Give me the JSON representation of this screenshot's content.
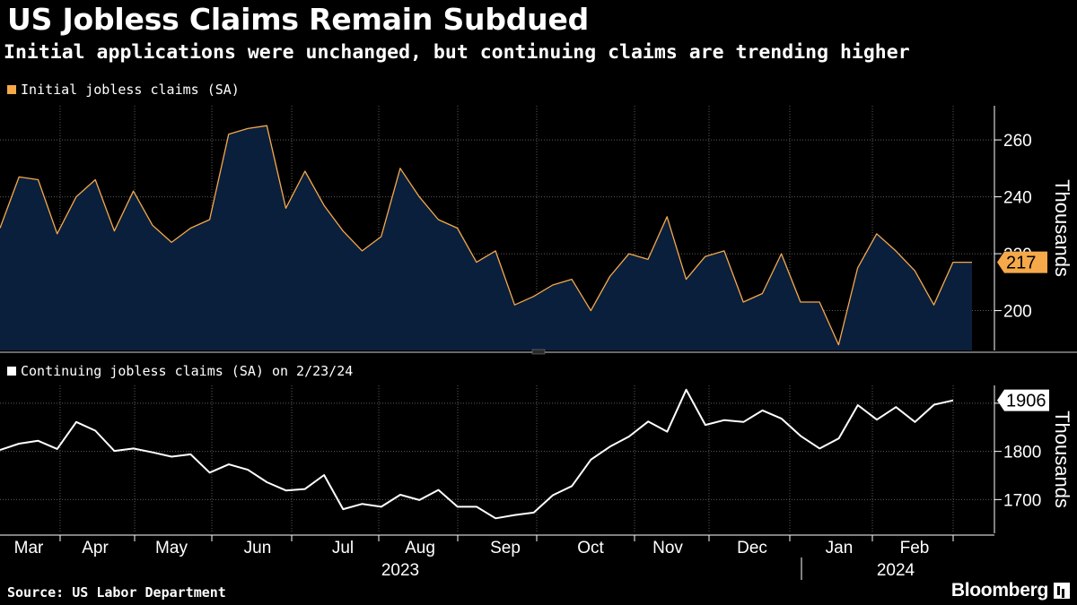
{
  "header": {
    "title": "US Jobless Claims Remain Subdued",
    "subtitle": "Initial applications were unchanged, but continuing claims are trending higher"
  },
  "footer": {
    "source": "Source: US Labor Department",
    "brand": "Bloomberg"
  },
  "colors": {
    "background": "#000000",
    "initial_line": "#f5a94a",
    "initial_fill": "#0a1f3b",
    "continuing_line": "#ffffff",
    "grid": "#5a5a5a"
  },
  "chart_data": [
    {
      "type": "area",
      "legend": "Initial jobless claims (SA)",
      "x_period": "2023-03-03 to 2024-02-23, weekly",
      "values": [
        229,
        247,
        246,
        227,
        240,
        246,
        228,
        242,
        230,
        224,
        229,
        232,
        262,
        264,
        265,
        236,
        249,
        237,
        228,
        221,
        226,
        250,
        240,
        232,
        229,
        217,
        221,
        202,
        205,
        209,
        211,
        200,
        212,
        220,
        218,
        233,
        211,
        219,
        221,
        203,
        206,
        220,
        203,
        203,
        188,
        215,
        227,
        221,
        214,
        202,
        217,
        217
      ],
      "ylim": [
        186,
        272
      ],
      "yticks": [
        200,
        220,
        240,
        260
      ],
      "ylabel": "Thousands",
      "last_value_label": "217"
    },
    {
      "type": "line",
      "legend": "Continuing jobless claims (SA) on 2/23/24",
      "x_period": "2023-02-24 to 2024-02-16, weekly",
      "values": [
        1803,
        1816,
        1822,
        1805,
        1861,
        1843,
        1801,
        1806,
        1798,
        1789,
        1794,
        1756,
        1773,
        1762,
        1736,
        1719,
        1722,
        1751,
        1680,
        1691,
        1685,
        1710,
        1699,
        1720,
        1685,
        1685,
        1661,
        1668,
        1673,
        1709,
        1728,
        1783,
        1810,
        1831,
        1862,
        1841,
        1928,
        1855,
        1865,
        1861,
        1885,
        1868,
        1832,
        1806,
        1827,
        1896,
        1866,
        1892,
        1861,
        1897,
        1906
      ],
      "ylim": [
        1630,
        1937
      ],
      "yticks": [
        1700,
        1800,
        1900
      ],
      "ylabel": "Thousands",
      "last_value_label": "1906"
    }
  ],
  "x_axis": {
    "months": [
      "Mar",
      "Apr",
      "May",
      "Jun",
      "Jul",
      "Aug",
      "Sep",
      "Oct",
      "Nov",
      "Dec",
      "Jan",
      "Feb"
    ],
    "years": [
      "2023",
      "2024"
    ]
  }
}
